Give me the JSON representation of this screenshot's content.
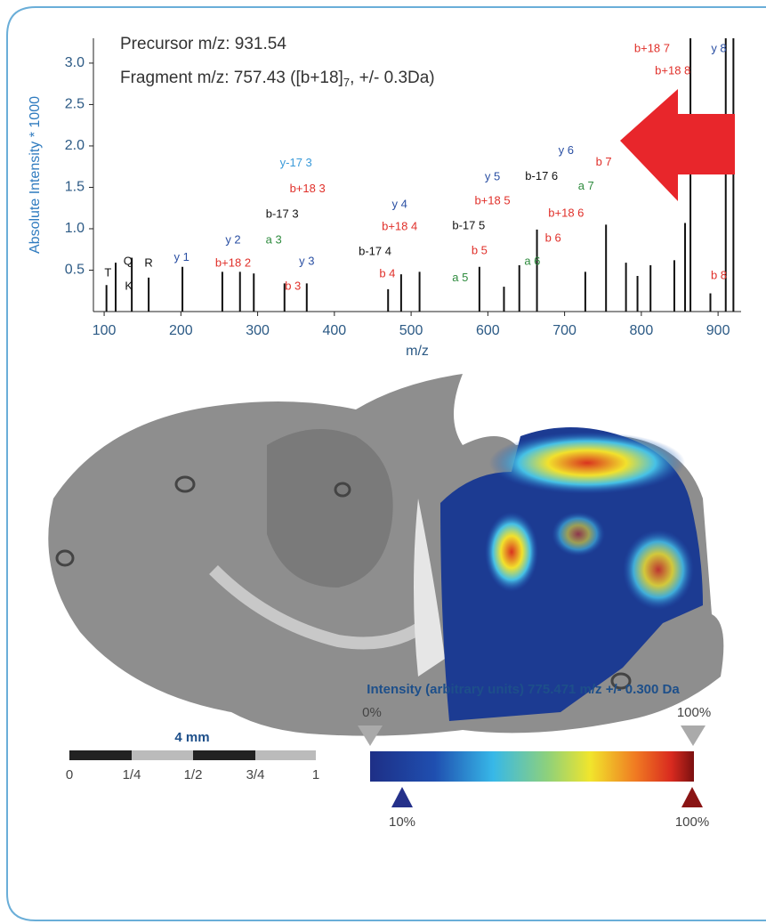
{
  "chart_data": {
    "type": "stem",
    "annotations": [
      "Precursor m/z: 931.54",
      "Fragment m/z: 757.43 ([b+18]",
      "7",
      ", +/- 0.3Da)"
    ],
    "xlabel": "m/z",
    "ylabel": "Absolute Intensity * 1000",
    "color": "#111111",
    "x": [
      103,
      115,
      136,
      158,
      202,
      254,
      277,
      295,
      335,
      364,
      470,
      487,
      511,
      589,
      621,
      641,
      664,
      727,
      754,
      780,
      795,
      812,
      843,
      857,
      864,
      890,
      910,
      920
    ],
    "values": [
      0.32,
      0.59,
      0.65,
      0.41,
      0.54,
      0.48,
      0.48,
      0.46,
      0.34,
      0.34,
      0.27,
      0.45,
      0.48,
      0.54,
      0.3,
      0.56,
      0.99,
      0.48,
      1.05,
      0.59,
      0.43,
      0.56,
      0.62,
      1.07,
      3.3,
      0.22,
      3.3,
      3.3
    ],
    "xlim": [
      86,
      930
    ],
    "xticks": [
      100,
      200,
      300,
      400,
      500,
      600,
      700,
      800,
      900
    ],
    "ylim": [
      0,
      3.3
    ],
    "yticks": [
      0.5,
      {
        "value": 1,
        "label": "1.0"
      },
      1.5,
      {
        "value": 2,
        "label": "2.0"
      },
      2.5,
      {
        "value": 3,
        "label": "3.0"
      }
    ],
    "fragment_labels": [
      {
        "text": "T",
        "x": 105,
        "y": 0.46,
        "color": "#111111"
      },
      {
        "text": "K",
        "x": 132,
        "y": 0.3,
        "color": "#111111"
      },
      {
        "text": "Q",
        "x": 131,
        "y": 0.6,
        "color": "#111111"
      },
      {
        "text": "R",
        "x": 158,
        "y": 0.58,
        "color": "#111111"
      },
      {
        "text": "y 1",
        "x": 201,
        "y": 0.65,
        "color": "#2a4fa3"
      },
      {
        "text": "y 2",
        "x": 268,
        "y": 0.86,
        "color": "#2a4fa3"
      },
      {
        "text": "b+18 2",
        "x": 268,
        "y": 0.58,
        "color": "#e0302a"
      },
      {
        "text": "a 3",
        "x": 321,
        "y": 0.86,
        "color": "#2e8b3e"
      },
      {
        "text": "y 3",
        "x": 364,
        "y": 0.6,
        "color": "#2a4fa3"
      },
      {
        "text": "b 3",
        "x": 346,
        "y": 0.3,
        "color": "#e0302a"
      },
      {
        "text": "b-17 3",
        "x": 332,
        "y": 1.17,
        "color": "#111111"
      },
      {
        "text": "b+18 3",
        "x": 365,
        "y": 1.48,
        "color": "#e0302a"
      },
      {
        "text": "y-17 3",
        "x": 350,
        "y": 1.79,
        "color": "#3a9ad9"
      },
      {
        "text": "y 4",
        "x": 485,
        "y": 1.29,
        "color": "#2a4fa3"
      },
      {
        "text": "b+18 4",
        "x": 485,
        "y": 1.02,
        "color": "#e0302a"
      },
      {
        "text": "b-17 4",
        "x": 453,
        "y": 0.72,
        "color": "#111111"
      },
      {
        "text": "b 4",
        "x": 469,
        "y": 0.45,
        "color": "#e0302a"
      },
      {
        "text": "a 5",
        "x": 564,
        "y": 0.4,
        "color": "#2e8b3e"
      },
      {
        "text": "b 5",
        "x": 589,
        "y": 0.73,
        "color": "#e0302a"
      },
      {
        "text": "b-17 5",
        "x": 575,
        "y": 1.03,
        "color": "#111111"
      },
      {
        "text": "b+18 5",
        "x": 606,
        "y": 1.33,
        "color": "#e0302a"
      },
      {
        "text": "y 5",
        "x": 606,
        "y": 1.62,
        "color": "#2a4fa3"
      },
      {
        "text": "b-17 6",
        "x": 670,
        "y": 1.63,
        "color": "#111111"
      },
      {
        "text": "y 6",
        "x": 702,
        "y": 1.94,
        "color": "#2a4fa3"
      },
      {
        "text": "a 7",
        "x": 728,
        "y": 1.51,
        "color": "#2e8b3e"
      },
      {
        "text": "b+18 6",
        "x": 702,
        "y": 1.18,
        "color": "#e0302a"
      },
      {
        "text": "b 6",
        "x": 685,
        "y": 0.88,
        "color": "#e0302a"
      },
      {
        "text": "a 6",
        "x": 658,
        "y": 0.6,
        "color": "#2e8b3e"
      },
      {
        "text": "b 7",
        "x": 751,
        "y": 1.8,
        "color": "#e0302a"
      },
      {
        "text": "b+18 7",
        "x": 814,
        "y": 3.17,
        "color": "#e0302a"
      },
      {
        "text": "b+18 8",
        "x": 841,
        "y": 2.9,
        "color": "#e0302a"
      },
      {
        "text": "y 8",
        "x": 901,
        "y": 3.17,
        "color": "#2a4fa3"
      },
      {
        "text": "b 8",
        "x": 901,
        "y": 0.43,
        "color": "#e0302a"
      }
    ]
  },
  "scale_bar": {
    "label": "4 mm",
    "ticks": [
      "0",
      "1/4",
      "1/2",
      "3/4",
      "1"
    ]
  },
  "colorbar": {
    "title": "Intensity (arbitrary units) 775.471 m/z +/- 0.300 Da",
    "top_labels": [
      "0%",
      "100%"
    ],
    "bottom_labels": [
      "10%",
      "100%"
    ]
  }
}
